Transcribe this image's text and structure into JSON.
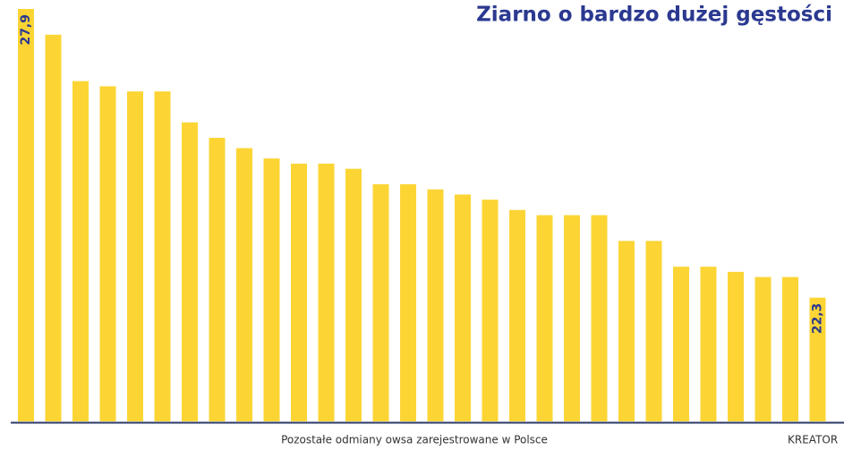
{
  "chart_data": {
    "type": "bar",
    "title": "Ziarno o bardzo dużej gęstości",
    "x_label": "Pozostałe odmiany owsa zarejestrowane w Polsce",
    "annotation": "KREATOR",
    "categories": [
      null,
      null,
      null,
      null,
      null,
      null,
      null,
      null,
      null,
      null,
      null,
      null,
      null,
      null,
      null,
      null,
      null,
      null,
      null,
      null,
      null,
      null,
      null,
      null,
      null,
      null,
      null,
      null,
      null,
      null
    ],
    "values": [
      27.9,
      27.4,
      26.5,
      26.4,
      26.3,
      26.3,
      25.7,
      25.4,
      25.2,
      25.0,
      24.9,
      24.9,
      24.8,
      24.5,
      24.5,
      24.4,
      24.3,
      24.2,
      24.0,
      23.9,
      23.9,
      23.9,
      23.4,
      23.4,
      22.9,
      22.9,
      22.8,
      22.7,
      22.7,
      22.3
    ],
    "value_labels": [
      "27,9",
      null,
      null,
      null,
      null,
      null,
      null,
      null,
      null,
      null,
      null,
      null,
      null,
      null,
      null,
      null,
      null,
      null,
      null,
      null,
      null,
      null,
      null,
      null,
      null,
      null,
      null,
      null,
      null,
      "22,3"
    ],
    "color": "#fcd535",
    "ylim": [
      19.9,
      27.9
    ]
  }
}
